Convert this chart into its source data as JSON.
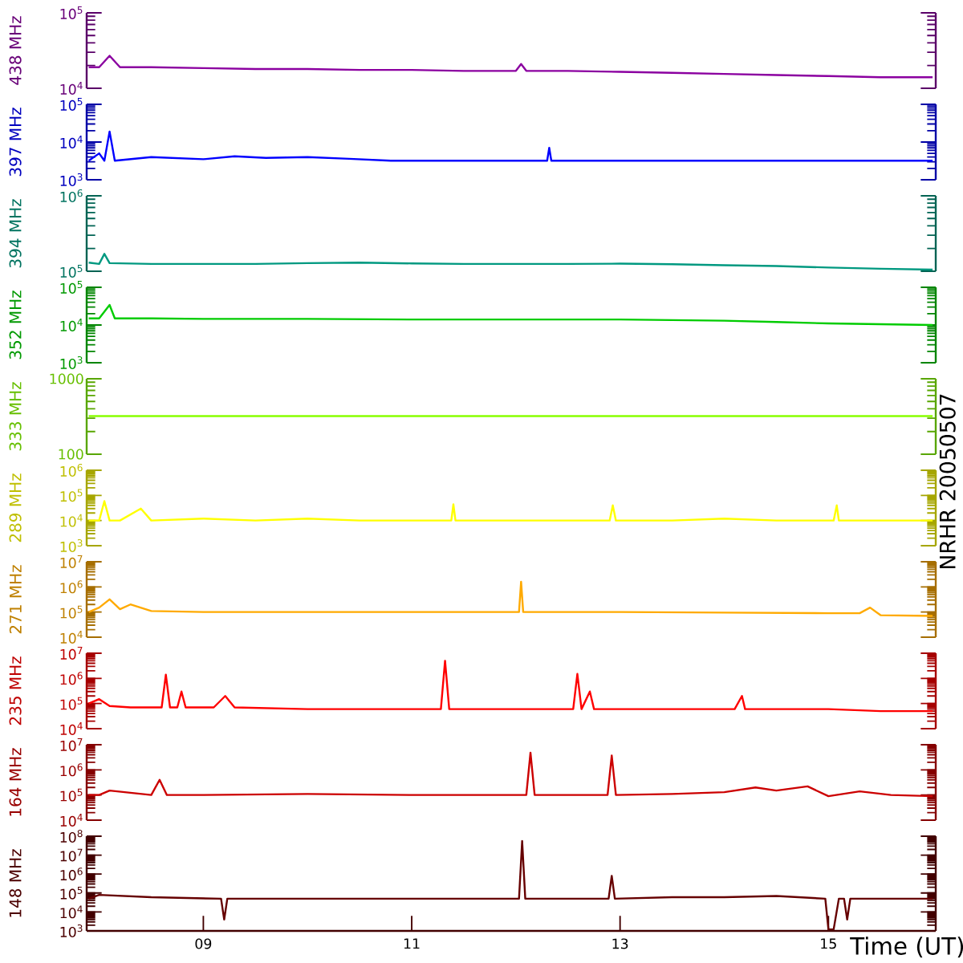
{
  "chart_data": [
    {
      "type": "line",
      "ylabel": "438 MHz",
      "color": "#8b00a0",
      "log": "y",
      "xlim": [
        7.88,
        16.03
      ],
      "ylim": [
        10000,
        100000
      ],
      "tick_labels": "y",
      "yticks": [
        {
          "value": 10000,
          "label": "10$^{4}$"
        },
        {
          "value": 100000,
          "label": "10$^{5}$"
        }
      ],
      "x": [
        7.9,
        8.0,
        8.1,
        8.2,
        8.5,
        9,
        9.5,
        10,
        10.5,
        11,
        11.5,
        12,
        12.05,
        12.1,
        12.5,
        13,
        13.5,
        14,
        14.5,
        15,
        15.5,
        16
      ],
      "values": [
        19000,
        19000,
        27000,
        19000,
        19000,
        18500,
        18000,
        18000,
        17500,
        17500,
        17000,
        17000,
        21000,
        17000,
        17000,
        16500,
        16000,
        15500,
        15000,
        14500,
        14000,
        14000
      ]
    },
    {
      "type": "line",
      "ylabel": "397 MHz",
      "color": "#0000ff",
      "log": "y",
      "xlim": [
        7.88,
        16.03
      ],
      "ylim": [
        1000,
        100000
      ],
      "tick_labels": "y",
      "yticks": [
        {
          "value": 1000,
          "label": "10$^{3}$"
        },
        {
          "value": 10000,
          "label": "10$^{4}$"
        },
        {
          "value": 100000,
          "label": "10$^{5}$"
        }
      ],
      "x": [
        7.9,
        8.0,
        8.05,
        8.1,
        8.15,
        8.5,
        9.0,
        9.3,
        9.6,
        10.0,
        10.4,
        10.8,
        12.3,
        12.32,
        12.34,
        13,
        14,
        15,
        16
      ],
      "values": [
        3200,
        5000,
        3200,
        19000,
        3200,
        4000,
        3500,
        4200,
        3800,
        4000,
        3600,
        3200,
        3200,
        7000,
        3200,
        3200,
        3200,
        3200,
        3200
      ]
    },
    {
      "type": "line",
      "ylabel": "394 MHz",
      "color": "#009980",
      "log": "y",
      "xlim": [
        7.88,
        16.03
      ],
      "ylim": [
        100000,
        1000000
      ],
      "tick_labels": "y",
      "yticks": [
        {
          "value": 100000,
          "label": "10$^{5}$"
        },
        {
          "value": 1000000,
          "label": "10$^{6}$"
        }
      ],
      "x": [
        7.9,
        8.0,
        8.05,
        8.1,
        8.5,
        9,
        9.5,
        10,
        10.5,
        11,
        11.5,
        12,
        12.5,
        13,
        13.5,
        14,
        14.5,
        15,
        15.5,
        16
      ],
      "values": [
        130000,
        125000,
        170000,
        128000,
        125000,
        125000,
        125000,
        128000,
        130000,
        127000,
        125000,
        125000,
        125000,
        126000,
        124000,
        120000,
        117000,
        112000,
        108000,
        105000
      ]
    },
    {
      "type": "line",
      "ylabel": "352 MHz",
      "color": "#00cc00",
      "log": "y",
      "xlim": [
        7.88,
        16.03
      ],
      "ylim": [
        1000,
        100000
      ],
      "tick_labels": "y",
      "yticks": [
        {
          "value": 1000,
          "label": "10$^{3}$"
        },
        {
          "value": 10000,
          "label": "10$^{4}$"
        },
        {
          "value": 100000,
          "label": "10$^{5}$"
        }
      ],
      "x": [
        7.9,
        8.0,
        8.1,
        8.15,
        8.5,
        9,
        10,
        11,
        12,
        13,
        14,
        14.5,
        15,
        15.5,
        16
      ],
      "values": [
        15000,
        15000,
        34000,
        15000,
        15000,
        14500,
        14500,
        14000,
        14000,
        14000,
        13000,
        12000,
        11000,
        10500,
        10000
      ]
    },
    {
      "type": "line",
      "ylabel": "333 MHz",
      "color": "#88ff00",
      "log": "y",
      "xlim": [
        7.88,
        16.03
      ],
      "ylim": [
        100,
        1000
      ],
      "tick_labels": "y",
      "yticks": [
        100,
        1000
      ],
      "x": [
        7.9,
        16
      ],
      "values": [
        320,
        320
      ]
    },
    {
      "type": "line",
      "ylabel": "289 MHz",
      "color": "#ffff00",
      "log": "y",
      "xlim": [
        7.88,
        16.03
      ],
      "ylim": [
        1000,
        1000000
      ],
      "tick_labels": "y",
      "yticks": [
        {
          "value": 1000,
          "label": "10$^{3}$"
        },
        {
          "value": 10000,
          "label": "10$^{4}$"
        },
        {
          "value": 100000,
          "label": "10$^{5}$"
        },
        {
          "value": 1000000,
          "label": "10$^{6}$"
        }
      ],
      "x": [
        7.9,
        8.0,
        8.05,
        8.1,
        8.2,
        8.4,
        8.5,
        9,
        9.5,
        10,
        10.5,
        11,
        11.38,
        11.4,
        11.42,
        12,
        12.9,
        12.93,
        12.96,
        13.5,
        14,
        14.5,
        15.05,
        15.08,
        15.1,
        16
      ],
      "values": [
        10000,
        10000,
        59000,
        10000,
        10000,
        30000,
        10000,
        12000,
        10000,
        12000,
        10000,
        10000,
        10000,
        44000,
        10000,
        10000,
        10000,
        40000,
        10000,
        10000,
        12000,
        10000,
        10000,
        40000,
        10000,
        10000
      ]
    },
    {
      "type": "line",
      "ylabel": "271 MHz",
      "color": "#ffaa00",
      "log": "y",
      "xlim": [
        7.88,
        16.03
      ],
      "ylim": [
        10000,
        10000000
      ],
      "tick_labels": "y",
      "yticks": [
        {
          "value": 10000,
          "label": "10$^{4}$"
        },
        {
          "value": 100000,
          "label": "10$^{5}$"
        },
        {
          "value": 1000000,
          "label": "10$^{6}$"
        },
        {
          "value": 10000000,
          "label": "10$^{7}$"
        }
      ],
      "x": [
        7.9,
        8.0,
        8.1,
        8.2,
        8.3,
        8.5,
        9,
        10,
        11,
        12,
        12.03,
        12.05,
        12.07,
        13,
        14,
        15,
        15.3,
        15.4,
        15.5,
        16
      ],
      "values": [
        100000,
        150000,
        320000,
        130000,
        200000,
        110000,
        100000,
        100000,
        100000,
        100000,
        100000,
        1600000,
        100000,
        100000,
        95000,
        90000,
        90000,
        150000,
        75000,
        70000
      ]
    },
    {
      "type": "line",
      "ylabel": "235 MHz",
      "color": "#ff0000",
      "log": "y",
      "xlim": [
        7.88,
        16.03
      ],
      "ylim": [
        10000,
        10000000
      ],
      "tick_labels": "y",
      "yticks": [
        {
          "value": 10000,
          "label": "10$^{4}$"
        },
        {
          "value": 100000,
          "label": "10$^{5}$"
        },
        {
          "value": 1000000,
          "label": "10$^{6}$"
        },
        {
          "value": 10000000,
          "label": "10$^{7}$"
        }
      ],
      "x": [
        7.9,
        8.0,
        8.1,
        8.3,
        8.6,
        8.64,
        8.68,
        8.75,
        8.79,
        8.83,
        9.1,
        9.21,
        9.3,
        10,
        11,
        11.28,
        11.32,
        11.36,
        12,
        12.55,
        12.59,
        12.63,
        12.71,
        12.75,
        13.5,
        14.1,
        14.17,
        14.2,
        15,
        15.5,
        16
      ],
      "values": [
        100000,
        150000,
        80000,
        70000,
        70000,
        1400000,
        70000,
        70000,
        300000,
        70000,
        70000,
        200000,
        70000,
        60000,
        60000,
        60000,
        5000000,
        60000,
        60000,
        60000,
        1500000,
        60000,
        300000,
        60000,
        60000,
        60000,
        200000,
        60000,
        60000,
        50000,
        50000
      ]
    },
    {
      "type": "line",
      "ylabel": "164 MHz",
      "color": "#cc0000",
      "log": "y",
      "xlim": [
        7.88,
        16.03
      ],
      "ylim": [
        10000,
        10000000
      ],
      "tick_labels": "y",
      "yticks": [
        {
          "value": 10000,
          "label": "10$^{4}$"
        },
        {
          "value": 100000,
          "label": "10$^{5}$"
        },
        {
          "value": 1000000,
          "label": "10$^{6}$"
        },
        {
          "value": 10000000,
          "label": "10$^{7}$"
        }
      ],
      "x": [
        7.9,
        8.0,
        8.1,
        8.5,
        8.58,
        8.65,
        9,
        10,
        11,
        12,
        12.1,
        12.14,
        12.18,
        12.5,
        12.88,
        12.92,
        12.96,
        13.5,
        14,
        14.3,
        14.5,
        14.8,
        15,
        15.3,
        15.6,
        16
      ],
      "values": [
        100000,
        100000,
        150000,
        100000,
        400000,
        100000,
        100000,
        110000,
        100000,
        100000,
        100000,
        4800000,
        100000,
        100000,
        100000,
        3700000,
        100000,
        110000,
        130000,
        200000,
        150000,
        220000,
        90000,
        140000,
        100000,
        90000
      ]
    },
    {
      "type": "line",
      "ylabel": "148 MHz",
      "color": "#660000",
      "log": "y",
      "xlim": [
        7.88,
        16.03
      ],
      "ylim": [
        1000,
        100000000
      ],
      "xlabel": "Time (UT)",
      "annotations": [
        "NRHR 20050507"
      ],
      "xticks": [
        {
          "value": 9,
          "label": "09"
        },
        11,
        13,
        15
      ],
      "yticks": [
        {
          "value": 1000,
          "label": "10$^{3}$"
        },
        {
          "value": 10000,
          "label": "10$^{4}$"
        },
        {
          "value": 100000,
          "label": "10$^{5}$"
        },
        {
          "value": 1000000,
          "label": "10$^{6}$"
        },
        {
          "value": 10000000,
          "label": "10$^{7}$"
        },
        {
          "value": 100000000,
          "label": "10$^{8}$"
        }
      ],
      "x": [
        7.9,
        8.0,
        8.5,
        9.17,
        9.2,
        9.23,
        10,
        11,
        12.03,
        12.06,
        12.09,
        12.89,
        12.92,
        12.95,
        13.5,
        14,
        14.5,
        14.97,
        15.0,
        15.05,
        15.1,
        15.15,
        15.18,
        15.21,
        15.6,
        16
      ],
      "values": [
        50000,
        80000,
        60000,
        50000,
        4000,
        50000,
        50000,
        50000,
        50000,
        56000000,
        50000,
        50000,
        800000,
        50000,
        60000,
        60000,
        70000,
        50000,
        1200,
        1200,
        50000,
        50000,
        4000,
        50000,
        50000,
        50000
      ]
    }
  ]
}
